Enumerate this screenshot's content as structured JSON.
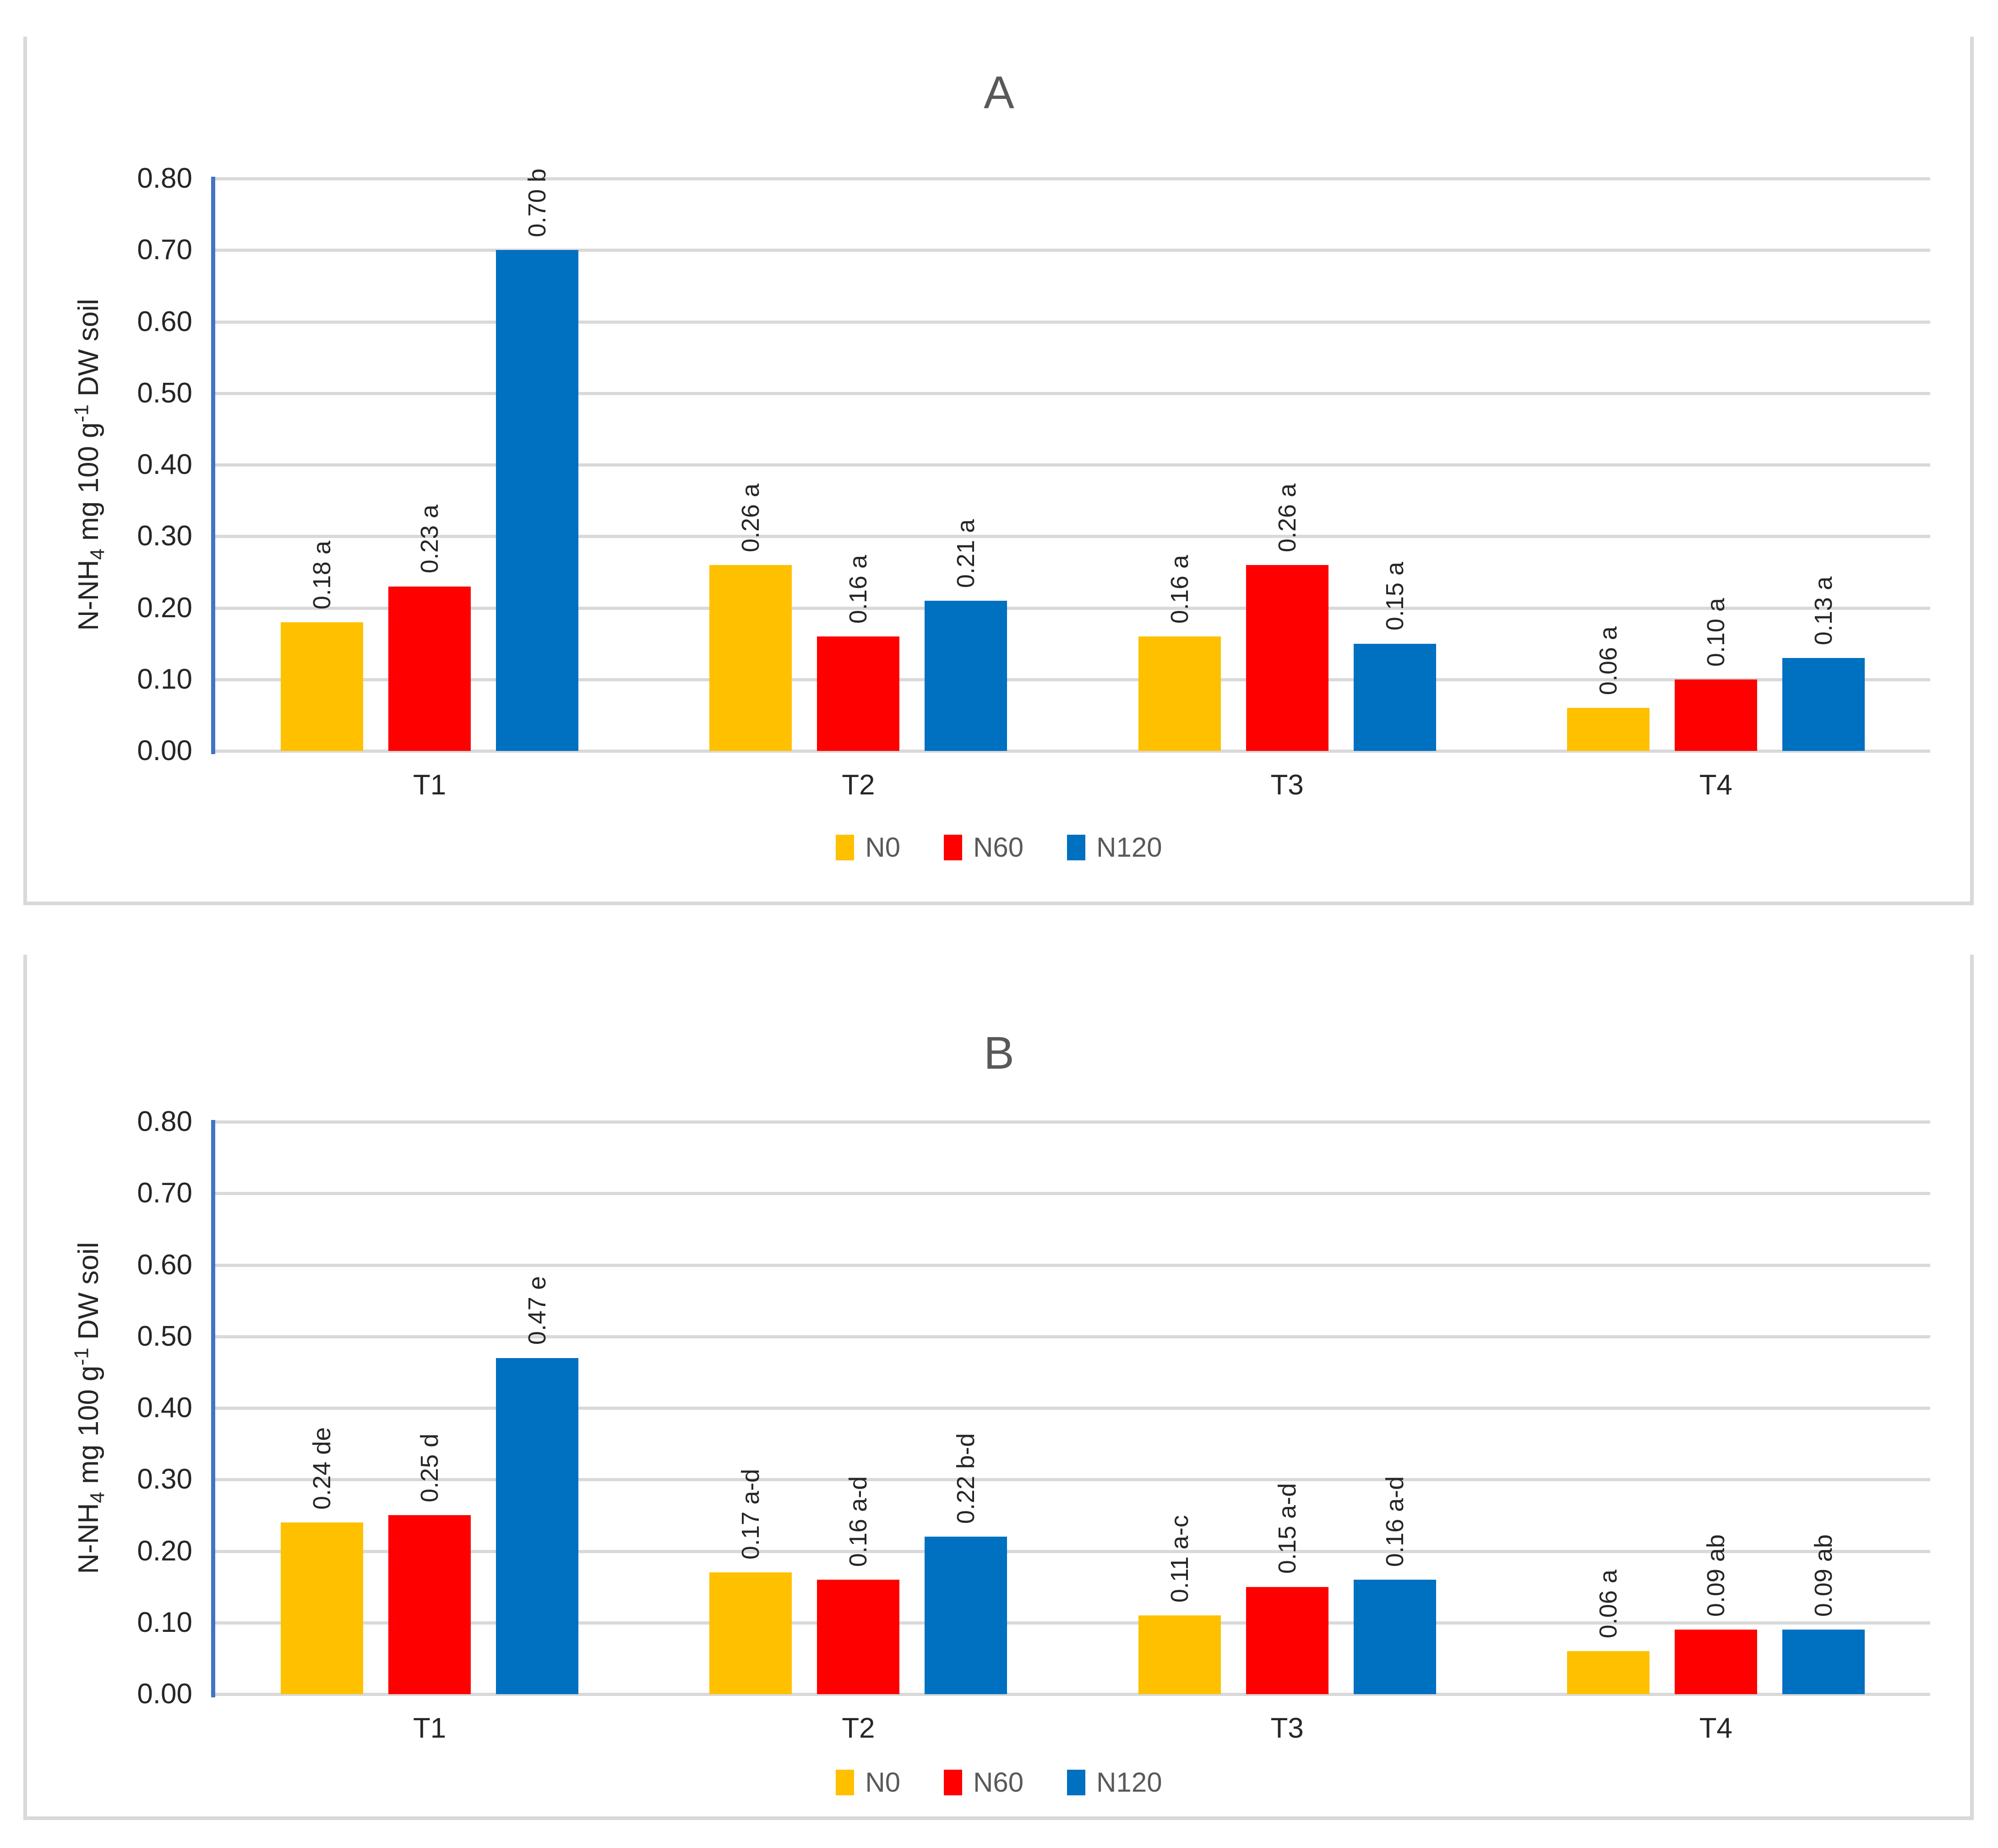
{
  "style": {
    "background": "#FFFFFF",
    "panel_border": "#D9D9D9",
    "gridline_color": "#D9D9D9",
    "yaxis_line_color": "#4472C4",
    "tick_text_color": "#262626",
    "muted_text_color": "#595959",
    "series_colors": {
      "N0": "#FFC000",
      "N60": "#FF0000",
      "N120": "#0070C0"
    }
  },
  "ylabel_parts": {
    "p1": "N-NH",
    "sub": "4",
    "p2": " mg 100 g",
    "sup": "-1",
    "p3": " DW soil"
  },
  "chart_data": [
    {
      "type": "bar",
      "title": "A",
      "categories": [
        "T1",
        "T2",
        "T3",
        "T4"
      ],
      "series": [
        {
          "name": "N0",
          "color": "#FFC000",
          "values": [
            0.18,
            0.26,
            0.16,
            0.06
          ],
          "labels": [
            "0.18 a",
            "0.26 a",
            "0.16 a",
            "0.06 a"
          ]
        },
        {
          "name": "N60",
          "color": "#FF0000",
          "values": [
            0.23,
            0.16,
            0.26,
            0.1
          ],
          "labels": [
            "0.23 a",
            "0.16 a",
            "0.26 a",
            "0.10 a"
          ]
        },
        {
          "name": "N120",
          "color": "#0070C0",
          "values": [
            0.7,
            0.21,
            0.15,
            0.13
          ],
          "labels": [
            "0.70 b",
            "0.21 a",
            "0.15 a",
            "0.13 a"
          ]
        }
      ],
      "ylabel": "N-NH4 mg 100 g-1 DW soil",
      "ylim": [
        0,
        0.8
      ],
      "ytick_step": 0.1,
      "ytick_labels": [
        "0.00",
        "0.10",
        "0.20",
        "0.30",
        "0.40",
        "0.50",
        "0.60",
        "0.70",
        "0.80"
      ],
      "grid": true,
      "legend_position": "bottom"
    },
    {
      "type": "bar",
      "title": "B",
      "categories": [
        "T1",
        "T2",
        "T3",
        "T4"
      ],
      "series": [
        {
          "name": "N0",
          "color": "#FFC000",
          "values": [
            0.24,
            0.17,
            0.11,
            0.06
          ],
          "labels": [
            "0.24 de",
            "0.17 a-d",
            "0.11 a-c",
            "0.06 a"
          ]
        },
        {
          "name": "N60",
          "color": "#FF0000",
          "values": [
            0.25,
            0.16,
            0.15,
            0.09
          ],
          "labels": [
            "0.25 d",
            "0.16 a-d",
            "0.15 a-d",
            "0.09 ab"
          ]
        },
        {
          "name": "N120",
          "color": "#0070C0",
          "values": [
            0.47,
            0.22,
            0.16,
            0.09
          ],
          "labels": [
            "0.47 e",
            "0.22 b-d",
            "0.16 a-d",
            "0.09 ab"
          ]
        }
      ],
      "ylabel": "N-NH4 mg 100 g-1 DW soil",
      "ylim": [
        0,
        0.8
      ],
      "ytick_step": 0.1,
      "ytick_labels": [
        "0.00",
        "0.10",
        "0.20",
        "0.30",
        "0.40",
        "0.50",
        "0.60",
        "0.70",
        "0.80"
      ],
      "grid": true,
      "legend_position": "bottom"
    }
  ]
}
